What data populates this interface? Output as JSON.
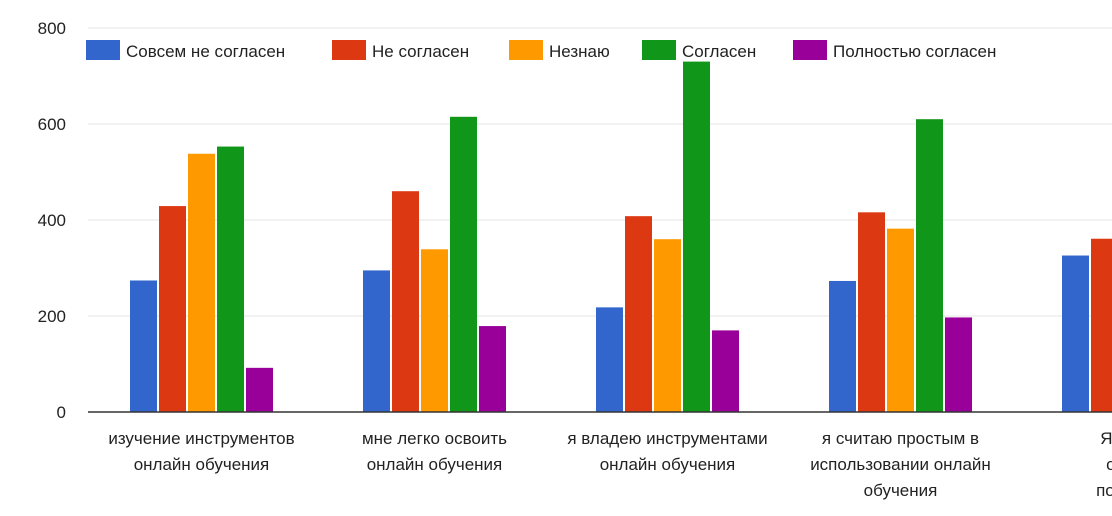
{
  "chart_data": {
    "type": "bar",
    "ylim": [
      0,
      800
    ],
    "yticks": [
      0,
      200,
      400,
      600,
      800
    ],
    "legend_position": "top",
    "categories": [
      [
        "изучение инструментов",
        "онлайн обучения"
      ],
      [
        "мне легко освоить",
        "онлайн обучения"
      ],
      [
        "я владею инструментами",
        "онлайн обучения"
      ],
      [
        "я считаю простым в",
        "использовании онлайн",
        "обучения"
      ],
      [
        "Я надеж",
        "оценки",
        "после он."
      ]
    ],
    "series": [
      {
        "name": "Совсем не согласен",
        "color": "#3366cc",
        "values": [
          274,
          295,
          218,
          273,
          326
        ]
      },
      {
        "name": "Не согласен",
        "color": "#dc3912",
        "values": [
          429,
          460,
          408,
          416,
          361
        ]
      },
      {
        "name": "Незнаю",
        "color": "#ff9900",
        "values": [
          538,
          339,
          360,
          382,
          null
        ]
      },
      {
        "name": "Согласен",
        "color": "#109618",
        "values": [
          553,
          615,
          730,
          610,
          null
        ]
      },
      {
        "name": "Полностью согласен",
        "color": "#990099",
        "values": [
          92,
          179,
          170,
          197,
          null
        ]
      }
    ]
  }
}
